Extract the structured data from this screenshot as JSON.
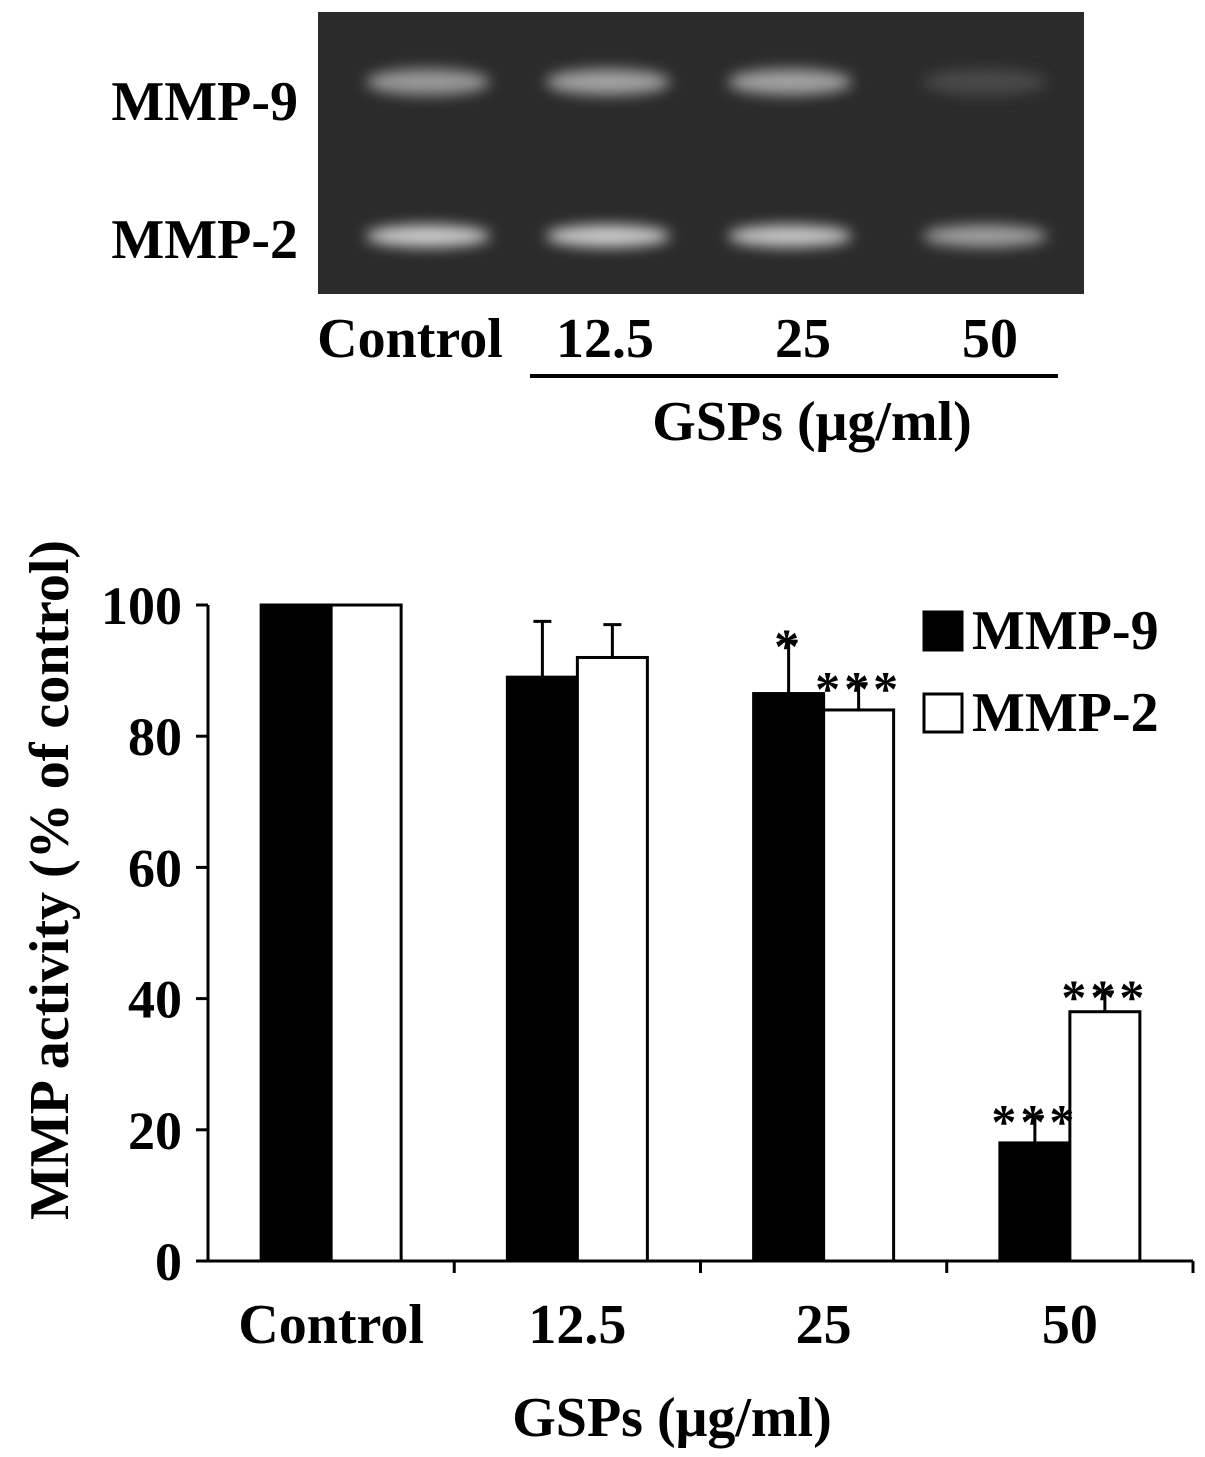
{
  "gel": {
    "band_labels": [
      "MMP-9",
      "MMP-2"
    ],
    "lane_labels": [
      "Control",
      "12.5",
      "25",
      "50"
    ],
    "group_label": "GSPs (μg/ml)",
    "band_intensity": {
      "MMP-9": [
        0.55,
        0.6,
        0.6,
        0.08
      ],
      "MMP-2": [
        0.85,
        0.85,
        0.82,
        0.6
      ]
    }
  },
  "chart_data": {
    "type": "bar",
    "categories": [
      "Control",
      "12.5",
      "25",
      "50"
    ],
    "xlabel": "GSPs (μg/ml)",
    "ylabel": "MMP activity (% of control)",
    "ylim": [
      0,
      100
    ],
    "yticks": [
      "0",
      "20",
      "40",
      "60",
      "80",
      "100"
    ],
    "legend_position": "top-right",
    "series": [
      {
        "name": "MMP-9",
        "color": "#000000",
        "values": [
          100,
          89,
          86.5,
          18
        ],
        "errors": [
          0,
          8.5,
          8,
          4
        ],
        "significance": [
          "",
          "",
          "*",
          "***"
        ]
      },
      {
        "name": "MMP-2",
        "color": "#ffffff",
        "values": [
          100,
          92,
          84,
          38
        ],
        "errors": [
          0,
          5,
          4,
          3
        ],
        "significance": [
          "",
          "",
          "***",
          "***"
        ]
      }
    ]
  }
}
